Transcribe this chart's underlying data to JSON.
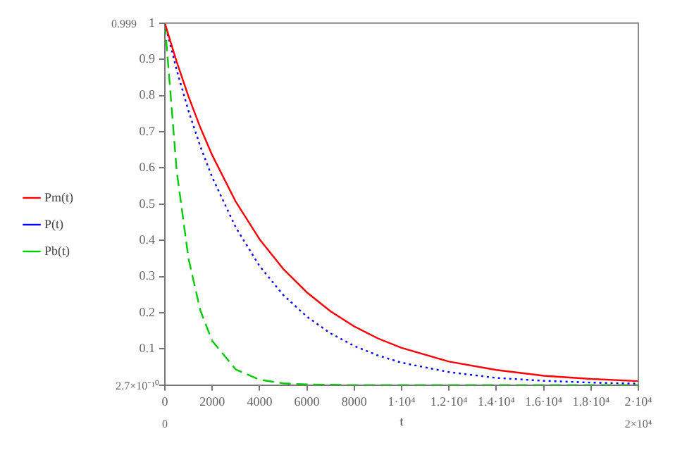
{
  "chart_data": {
    "type": "line",
    "xlabel": "t",
    "x": [
      0,
      500,
      1000,
      1500,
      2000,
      3000,
      4000,
      5000,
      6000,
      7000,
      8000,
      9000,
      10000,
      12000,
      14000,
      16000,
      18000,
      20000
    ],
    "series": [
      {
        "name": "Pm(t)",
        "color": "#ff0000",
        "line_style": "solid",
        "values": [
          1,
          0.893,
          0.797,
          0.711,
          0.635,
          0.506,
          0.403,
          0.321,
          0.256,
          0.204,
          0.162,
          0.129,
          0.103,
          0.065,
          0.042,
          0.026,
          0.017,
          0.011
        ]
      },
      {
        "name": "P(t)",
        "color": "#0000ff",
        "line_style": "dotted",
        "values": [
          1,
          0.87,
          0.757,
          0.659,
          0.574,
          0.435,
          0.329,
          0.249,
          0.189,
          0.143,
          0.108,
          0.082,
          0.062,
          0.036,
          0.02,
          0.012,
          0.007,
          0.004
        ]
      },
      {
        "name": "Pb(t)",
        "color": "#00cc00",
        "line_style": "dashed",
        "values": [
          1,
          0.591,
          0.349,
          0.206,
          0.122,
          0.043,
          0.015,
          0.005,
          0.002,
          0.001,
          0,
          0,
          0,
          0,
          0,
          0,
          0,
          0
        ]
      }
    ],
    "xlim": [
      0,
      20000
    ],
    "ylim": [
      0,
      1
    ],
    "xticks": [
      0,
      2000,
      4000,
      6000,
      8000,
      {
        "value": 10000,
        "label": "1·10⁴"
      },
      {
        "value": 12000,
        "label": "1.2·10⁴"
      },
      {
        "value": 14000,
        "label": "1.4·10⁴"
      },
      {
        "value": 16000,
        "label": "1.6·10⁴"
      },
      {
        "value": 18000,
        "label": "1.8·10⁴"
      },
      {
        "value": 20000,
        "label": "2·10⁴"
      }
    ],
    "yticks": [
      {
        "value": 0,
        "label": null
      },
      0.1,
      0.2,
      0.3,
      0.4,
      0.5,
      0.6,
      0.7,
      0.8,
      0.9,
      1
    ],
    "annotations": [
      "0.999",
      "2.7×10⁻¹⁰",
      "0",
      "2×10⁴"
    ],
    "legend": "left",
    "grid": false,
    "marker": "none"
  }
}
